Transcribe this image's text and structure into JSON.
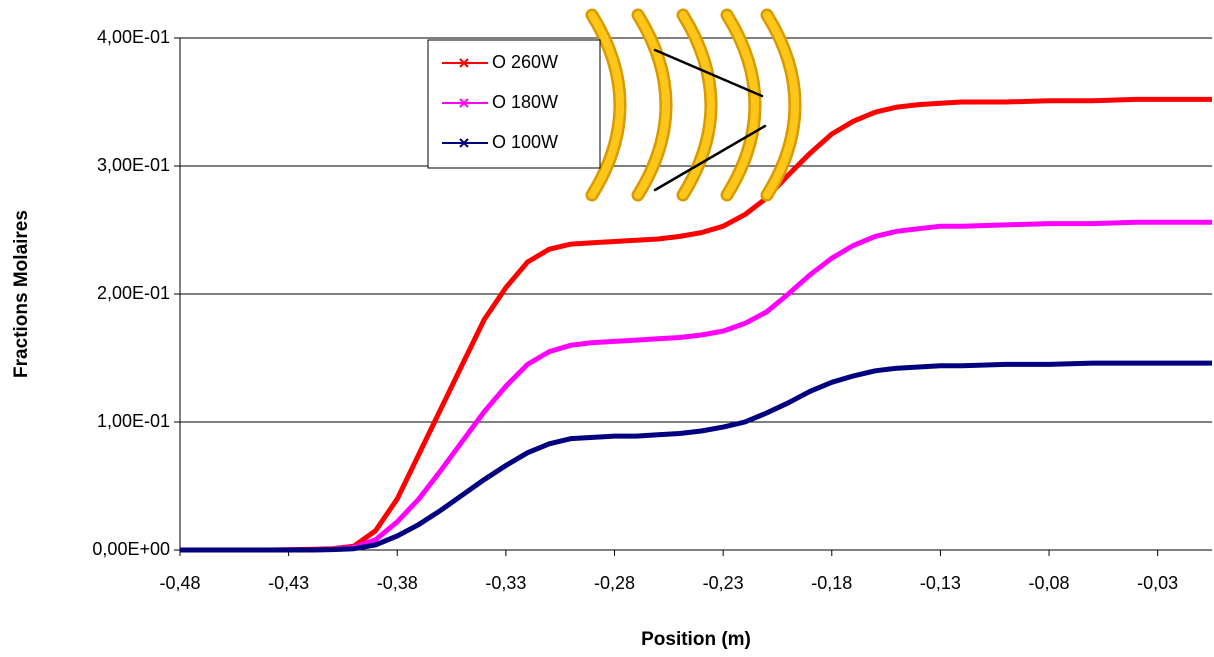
{
  "chart_data": {
    "type": "line",
    "x_label": "Position (m)",
    "y_label": "Fractions Molaires",
    "x": [
      -0.48,
      -0.46,
      -0.44,
      -0.42,
      -0.41,
      -0.4,
      -0.39,
      -0.38,
      -0.37,
      -0.36,
      -0.35,
      -0.34,
      -0.33,
      -0.32,
      -0.31,
      -0.3,
      -0.29,
      -0.28,
      -0.27,
      -0.26,
      -0.25,
      -0.24,
      -0.23,
      -0.22,
      -0.21,
      -0.2,
      -0.19,
      -0.18,
      -0.17,
      -0.16,
      -0.15,
      -0.14,
      -0.13,
      -0.12,
      -0.1,
      -0.08,
      -0.06,
      -0.04,
      -0.02,
      -0.005
    ],
    "series": [
      {
        "name": "O 260W",
        "color": "#ff0000",
        "values": [
          0,
          0,
          0,
          0.0005,
          0.001,
          0.003,
          0.015,
          0.04,
          0.075,
          0.11,
          0.145,
          0.18,
          0.205,
          0.225,
          0.235,
          0.239,
          0.24,
          0.241,
          0.242,
          0.243,
          0.245,
          0.248,
          0.253,
          0.262,
          0.275,
          0.293,
          0.31,
          0.325,
          0.335,
          0.342,
          0.346,
          0.348,
          0.349,
          0.35,
          0.35,
          0.351,
          0.351,
          0.352,
          0.352,
          0.352
        ]
      },
      {
        "name": "O 180W",
        "color": "#ff00ff",
        "values": [
          0,
          0,
          0,
          0,
          0.0005,
          0.002,
          0.008,
          0.022,
          0.04,
          0.062,
          0.085,
          0.108,
          0.128,
          0.145,
          0.155,
          0.16,
          0.162,
          0.163,
          0.164,
          0.165,
          0.166,
          0.168,
          0.171,
          0.177,
          0.186,
          0.2,
          0.215,
          0.228,
          0.238,
          0.245,
          0.249,
          0.251,
          0.253,
          0.253,
          0.254,
          0.255,
          0.255,
          0.256,
          0.256,
          0.256
        ]
      },
      {
        "name": "O 100W",
        "color": "#000080",
        "values": [
          0,
          0,
          0,
          0,
          0.0003,
          0.001,
          0.004,
          0.011,
          0.02,
          0.031,
          0.043,
          0.055,
          0.066,
          0.076,
          0.083,
          0.087,
          0.088,
          0.089,
          0.089,
          0.09,
          0.091,
          0.093,
          0.096,
          0.1,
          0.107,
          0.115,
          0.124,
          0.131,
          0.136,
          0.14,
          0.142,
          0.143,
          0.144,
          0.144,
          0.145,
          0.145,
          0.146,
          0.146,
          0.146,
          0.146
        ]
      }
    ],
    "xlim": [
      -0.48,
      -0.005
    ],
    "xticks": [
      {
        "value": -0.48,
        "label": "-0,48"
      },
      {
        "value": -0.43,
        "label": "-0,43"
      },
      {
        "value": -0.38,
        "label": "-0,38"
      },
      {
        "value": -0.33,
        "label": "-0,33"
      },
      {
        "value": -0.28,
        "label": "-0,28"
      },
      {
        "value": -0.23,
        "label": "-0,23"
      },
      {
        "value": -0.18,
        "label": "-0,18"
      },
      {
        "value": -0.13,
        "label": "-0,13"
      },
      {
        "value": -0.08,
        "label": "-0,08"
      },
      {
        "value": -0.03,
        "label": "-0,03"
      }
    ],
    "ylim": [
      0,
      0.4
    ],
    "yticks": [
      {
        "value": 0,
        "label": "0,00E+00"
      },
      {
        "value": 0.1,
        "label": "1,00E-01"
      },
      {
        "value": 0.2,
        "label": "2,00E-01"
      },
      {
        "value": 0.3,
        "label": "3,00E-01"
      },
      {
        "value": 0.4,
        "label": "4,00E-01"
      }
    ],
    "grid": true
  }
}
